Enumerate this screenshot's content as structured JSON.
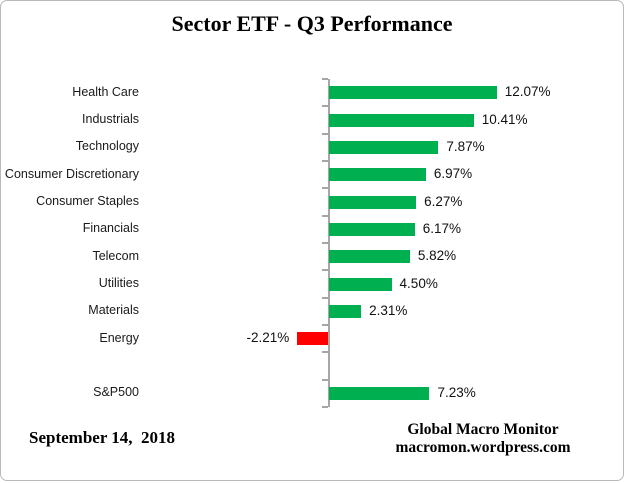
{
  "title": "Sector ETF - Q3 Performance",
  "footer": {
    "date": "September 14,  2018",
    "source_line1": "Global Macro Monitor",
    "source_line2": "macromon.wordpress.com"
  },
  "chart_data": {
    "type": "bar",
    "orientation": "horizontal",
    "title": "Sector ETF - Q3 Performance",
    "xlabel": "",
    "ylabel": "",
    "grid": false,
    "legend": false,
    "zero_axis_line": true,
    "xlim_pct": [
      -14,
      21
    ],
    "categories": [
      "Health Care",
      "Industrials",
      "Technology",
      "Consumer Discretionary",
      "Consumer Staples",
      "Financials",
      "Telecom",
      "Utilities",
      "Materials",
      "Energy",
      "",
      "S&P500"
    ],
    "values": [
      12.07,
      10.41,
      7.87,
      6.97,
      6.27,
      6.17,
      5.82,
      4.5,
      2.31,
      -2.21,
      null,
      7.23
    ],
    "value_labels": [
      "12.07%",
      "10.41%",
      "7.87%",
      "6.97%",
      "6.27%",
      "6.17%",
      "5.82%",
      "4.50%",
      "2.31%",
      "-2.21%",
      "",
      "7.23%"
    ],
    "positive_color": "#00B050",
    "negative_color": "#FF0000",
    "axis_color": "#A6A6A6",
    "label_color": "#1a1a1a"
  }
}
